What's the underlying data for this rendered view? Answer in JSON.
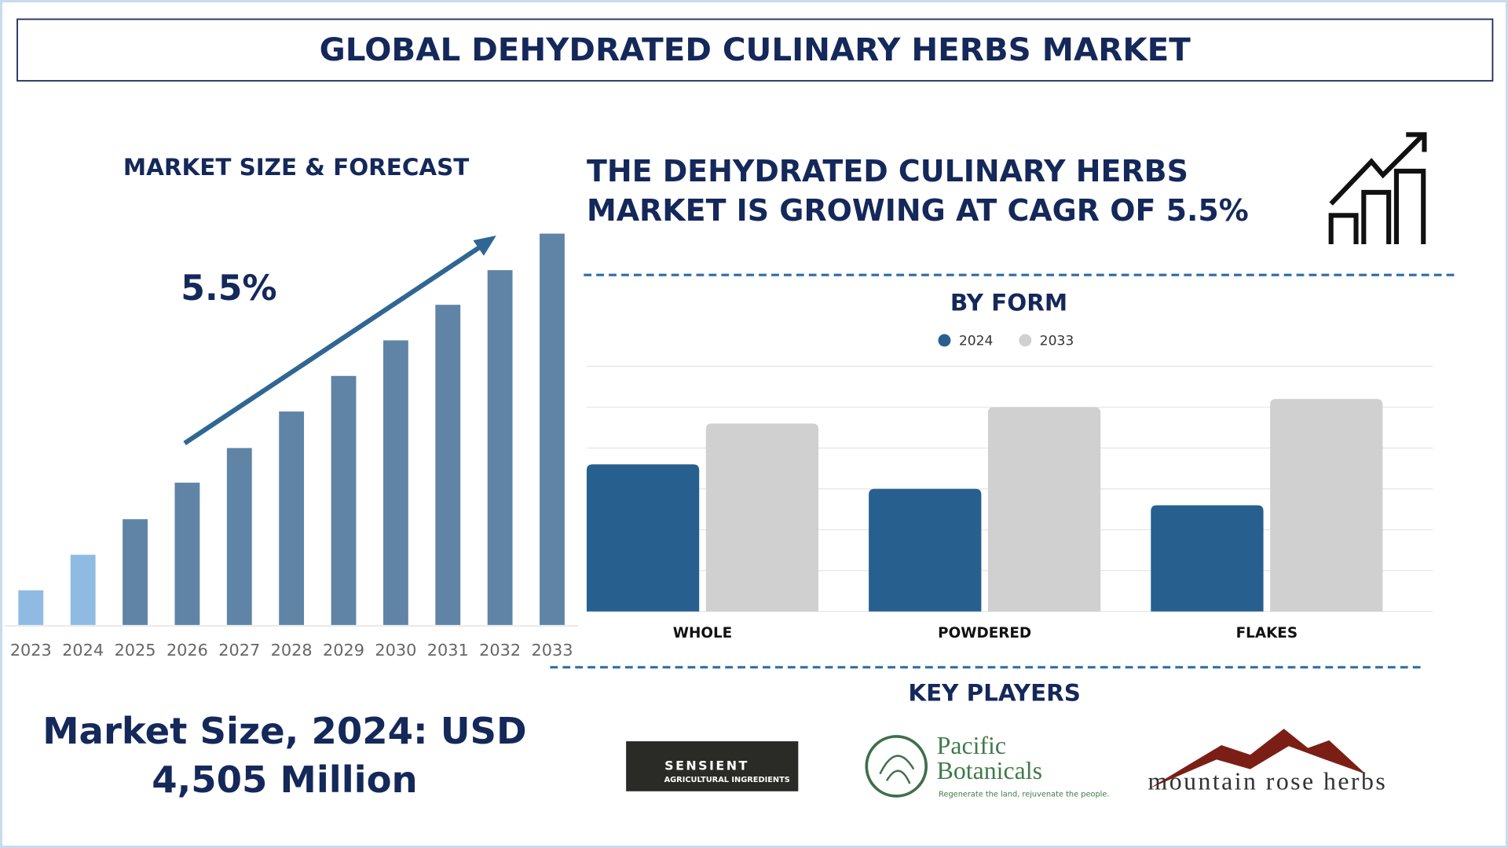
{
  "title": "GLOBAL DEHYDRATED CULINARY HERBS MARKET",
  "chart_data": [
    {
      "type": "bar",
      "title": "MARKET SIZE & FORECAST",
      "annotation": "5.5%",
      "categories": [
        "2023",
        "2024",
        "2025",
        "2026",
        "2027",
        "2028",
        "2029",
        "2030",
        "2031",
        "2032",
        "2033"
      ],
      "values": [
        36,
        73,
        110,
        148,
        184,
        222,
        259,
        296,
        333,
        369,
        407
      ],
      "colors": [
        "#8fbbe3",
        "#8fbbe3",
        "#5f84a6",
        "#5f84a6",
        "#5f84a6",
        "#5f84a6",
        "#5f84a6",
        "#5f84a6",
        "#5f84a6",
        "#5f84a6",
        "#5f84a6"
      ]
    },
    {
      "type": "grouped_bar",
      "title": "BY FORM",
      "categories": [
        "WHOLE",
        "POWDERED",
        "FLAKES"
      ],
      "series": [
        {
          "name": "2024",
          "color": "#27608f",
          "values": [
            3.6,
            3.0,
            2.6
          ]
        },
        {
          "name": "2033",
          "color": "#d0d0d0",
          "values": [
            4.6,
            5.0,
            5.2
          ]
        }
      ],
      "ylim": [
        0,
        6
      ],
      "yticks": [
        0,
        1,
        2,
        3,
        4,
        5,
        6
      ],
      "grid": true,
      "legend": "top"
    }
  ],
  "headline": [
    "THE DEHYDRATED CULINARY HERBS",
    "MARKET IS GROWING AT CAGR OF 5.5%"
  ],
  "market_size": [
    "Market Size, 2024: USD",
    "4,505 Million"
  ],
  "key_players": {
    "heading": "KEY PLAYERS",
    "logos": [
      {
        "name": "SENSIENT",
        "tagline": "AGRICULTURAL INGREDIENTS"
      },
      {
        "name": [
          "Pacific",
          "Botanicals"
        ],
        "tagline": "Regenerate the land, rejuvenate the people."
      },
      {
        "name": "mountain rose herbs"
      }
    ]
  }
}
